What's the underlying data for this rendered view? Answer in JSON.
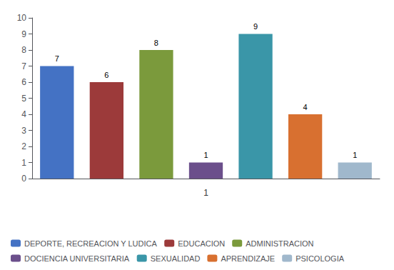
{
  "chart_data": {
    "type": "bar",
    "categories": [
      "DEPORTE, RECREACION Y LUDICA",
      "EDUCACION",
      "ADMINISTRACION",
      "DOCIENCIA UNIVERSITARIA",
      "SEXUALIDAD",
      "APRENDIZAJE",
      "PSICOLOGIA"
    ],
    "values": [
      7,
      6,
      8,
      1,
      9,
      4,
      1
    ],
    "colors": [
      "#4472C4",
      "#9C3A3A",
      "#7B9A3C",
      "#6B4F8B",
      "#3A96A8",
      "#D87030",
      "#A0B8CC"
    ],
    "xlabel": "1",
    "ylim": [
      0,
      10
    ],
    "yticks": [
      0,
      1,
      2,
      3,
      4,
      5,
      6,
      7,
      8,
      9,
      10
    ],
    "data_labels": true,
    "tick_labels": "y",
    "grid": false,
    "legend": "lower left"
  }
}
